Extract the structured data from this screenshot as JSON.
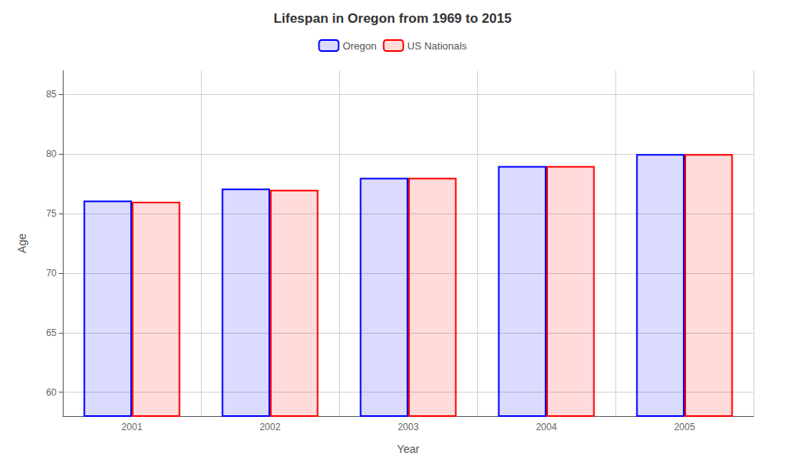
{
  "chart_data": {
    "type": "bar",
    "title": "Lifespan in Oregon from 1969 to 2015",
    "xlabel": "Year",
    "ylabel": "Age",
    "categories": [
      "2001",
      "2002",
      "2003",
      "2004",
      "2005"
    ],
    "series": [
      {
        "name": "Oregon",
        "color": "#0000ff",
        "values": [
          76.1,
          77.1,
          78.0,
          79.0,
          80.0
        ]
      },
      {
        "name": "US Nationals",
        "color": "#ff0000",
        "values": [
          76.0,
          77.0,
          78.0,
          79.0,
          80.0
        ]
      }
    ],
    "ylim": [
      58,
      87
    ],
    "yticks": [
      60,
      65,
      70,
      75,
      80,
      85
    ],
    "grid": true,
    "legend": "upper center"
  }
}
